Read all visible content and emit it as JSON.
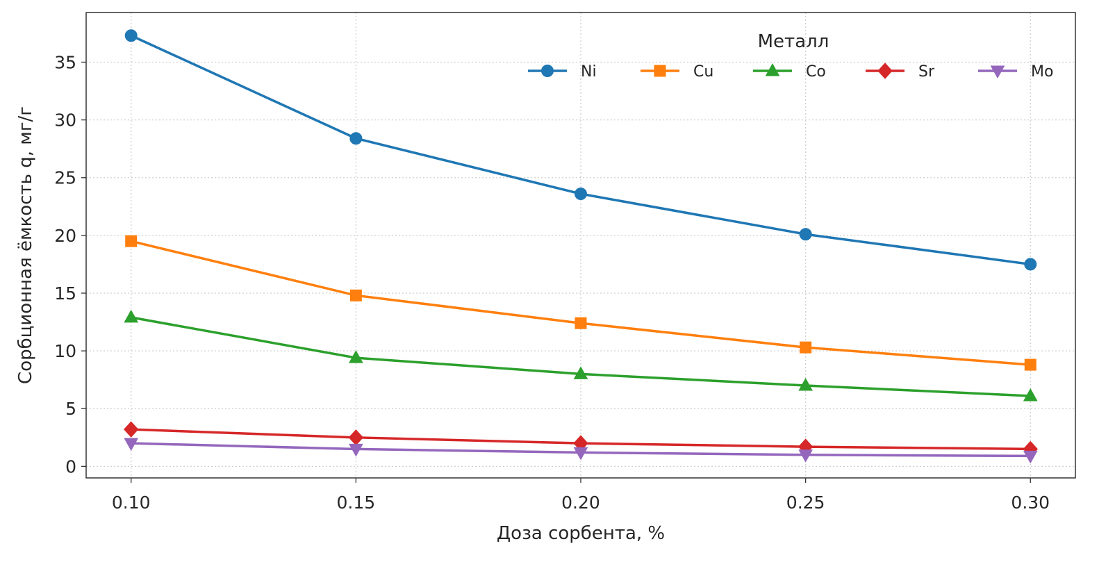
{
  "chart_data": {
    "type": "line",
    "xlabel": "Доза сорбента, %",
    "ylabel": "Сорбционная ёмкость q, мг/г",
    "x": [
      0.1,
      0.15,
      0.2,
      0.25,
      0.3
    ],
    "x_tick_labels": [
      "0.10",
      "0.15",
      "0.20",
      "0.25",
      "0.30"
    ],
    "xlim": [
      0.09,
      0.31
    ],
    "ylim": [
      -1,
      39.3
    ],
    "y_ticks": [
      0,
      5,
      10,
      15,
      20,
      25,
      30,
      35
    ],
    "grid": true,
    "legend": {
      "title": "Металл",
      "placement": "top-right",
      "columns": 5
    },
    "series": [
      {
        "name": "Ni",
        "color": "#1f77b4",
        "marker": "circle",
        "values": [
          37.3,
          28.4,
          23.6,
          20.1,
          17.5
        ]
      },
      {
        "name": "Cu",
        "color": "#ff7f0e",
        "marker": "square",
        "values": [
          19.5,
          14.8,
          12.4,
          10.3,
          8.8
        ]
      },
      {
        "name": "Co",
        "color": "#2ca02c",
        "marker": "triangle-up",
        "values": [
          12.9,
          9.4,
          8.0,
          7.0,
          6.1
        ]
      },
      {
        "name": "Sr",
        "color": "#d62728",
        "marker": "diamond",
        "values": [
          3.2,
          2.5,
          2.0,
          1.7,
          1.5
        ]
      },
      {
        "name": "Mo",
        "color": "#9467bd",
        "marker": "triangle-down",
        "values": [
          2.0,
          1.5,
          1.2,
          1.0,
          0.9
        ]
      }
    ]
  }
}
